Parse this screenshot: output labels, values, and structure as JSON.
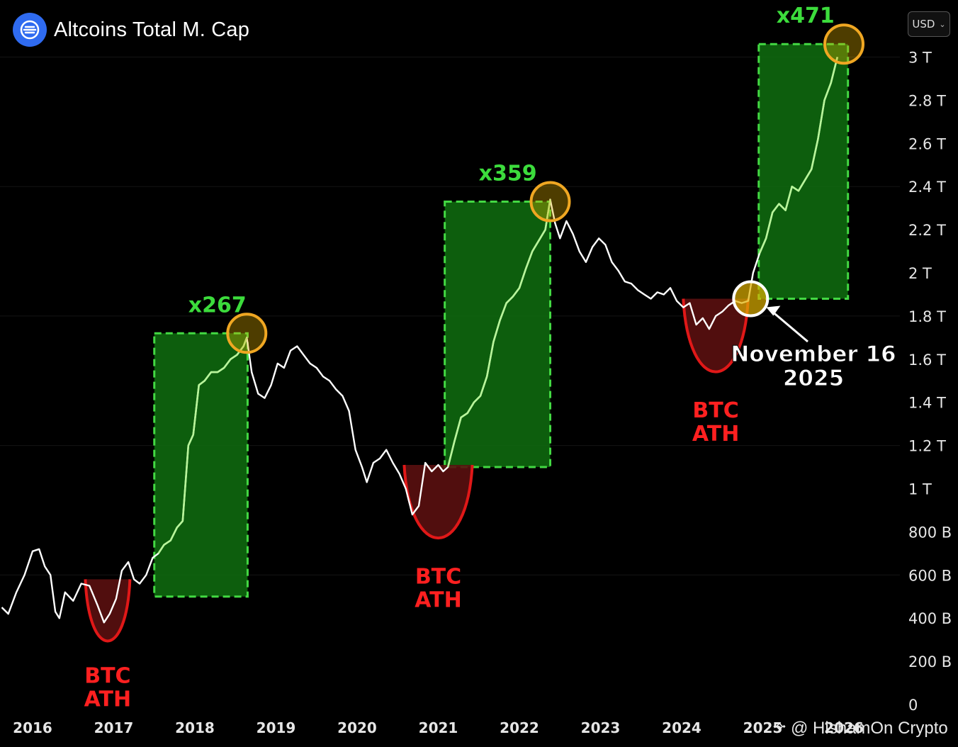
{
  "header": {
    "title": "Altcoins Total M. Cap",
    "currency": "USD",
    "currency_chevron_icon": "chevron-down-icon",
    "logo_icon": "altcoin-logo-icon"
  },
  "watermark": {
    "text": "@ HishamOn Crypto",
    "icon": "binance-icon"
  },
  "colors": {
    "price_line": "#ffffff",
    "rally_line": "#b8f59a",
    "rally_box_fill": "#0f6e0f",
    "rally_box_border": "#43d943",
    "multiplier_text": "#3cdc3c",
    "bottom_fill": "#5a0f0f",
    "bottom_stroke": "#e01818",
    "btc_ath_text": "#ff2020",
    "peak_circle": "#f0a722",
    "peak_fill": "#e0b000"
  },
  "chart_data": {
    "type": "line",
    "title": "Altcoins Total M. Cap",
    "ylim": [
      0,
      3100000000000
    ],
    "y_ticks": [
      {
        "value": 0,
        "label": "0"
      },
      {
        "value": 200000000000,
        "label": "200 B"
      },
      {
        "value": 400000000000,
        "label": "400 B"
      },
      {
        "value": 600000000000,
        "label": "600 B"
      },
      {
        "value": 800000000000,
        "label": "800 B"
      },
      {
        "value": 1000000000000,
        "label": "1 T"
      },
      {
        "value": 1200000000000,
        "label": "1.2 T"
      },
      {
        "value": 1400000000000,
        "label": "1.4 T"
      },
      {
        "value": 1600000000000,
        "label": "1.6 T"
      },
      {
        "value": 1800000000000,
        "label": "1.8 T"
      },
      {
        "value": 2000000000000,
        "label": "2 T"
      },
      {
        "value": 2200000000000,
        "label": "2.2 T"
      },
      {
        "value": 2400000000000,
        "label": "2.4 T"
      },
      {
        "value": 2600000000000,
        "label": "2.6 T"
      },
      {
        "value": 2800000000000,
        "label": "2.8 T"
      },
      {
        "value": 3000000000000,
        "label": "3 T"
      }
    ],
    "x_ticks": [
      "2016",
      "2017",
      "2018",
      "2019",
      "2020",
      "2021",
      "2022",
      "2023",
      "2024",
      "2025",
      "2026"
    ],
    "series": [
      {
        "points": [
          [
            2015.62,
            450
          ],
          [
            2015.7,
            420
          ],
          [
            2015.8,
            520
          ],
          [
            2015.9,
            600
          ],
          [
            2016.0,
            710
          ],
          [
            2016.08,
            720
          ],
          [
            2016.15,
            640
          ],
          [
            2016.22,
            600
          ],
          [
            2016.28,
            430
          ],
          [
            2016.33,
            400
          ],
          [
            2016.4,
            520
          ],
          [
            2016.5,
            480
          ],
          [
            2016.6,
            560
          ],
          [
            2016.7,
            550
          ],
          [
            2016.8,
            460
          ],
          [
            2016.88,
            380
          ],
          [
            2016.95,
            420
          ],
          [
            2017.03,
            490
          ],
          [
            2017.1,
            620
          ],
          [
            2017.18,
            660
          ],
          [
            2017.25,
            580
          ],
          [
            2017.32,
            560
          ],
          [
            2017.4,
            600
          ],
          [
            2017.48,
            680
          ],
          [
            2017.55,
            700
          ],
          [
            2017.62,
            740
          ],
          [
            2017.7,
            760
          ],
          [
            2017.78,
            820
          ],
          [
            2017.85,
            850
          ],
          [
            2017.92,
            1200
          ],
          [
            2017.98,
            1250
          ],
          [
            2018.05,
            1480
          ],
          [
            2018.12,
            1500
          ],
          [
            2018.2,
            1540
          ],
          [
            2018.28,
            1540
          ],
          [
            2018.36,
            1560
          ],
          [
            2018.44,
            1600
          ],
          [
            2018.52,
            1620
          ],
          [
            2018.6,
            1660
          ],
          [
            2018.64,
            1700
          ],
          [
            2018.7,
            1540
          ],
          [
            2018.78,
            1440
          ],
          [
            2018.86,
            1420
          ],
          [
            2018.94,
            1480
          ],
          [
            2019.02,
            1580
          ],
          [
            2019.1,
            1560
          ],
          [
            2019.18,
            1640
          ],
          [
            2019.26,
            1660
          ],
          [
            2019.34,
            1620
          ],
          [
            2019.42,
            1580
          ],
          [
            2019.5,
            1560
          ],
          [
            2019.58,
            1520
          ],
          [
            2019.66,
            1500
          ],
          [
            2019.74,
            1460
          ],
          [
            2019.82,
            1430
          ],
          [
            2019.9,
            1360
          ],
          [
            2019.98,
            1180
          ],
          [
            2020.06,
            1100
          ],
          [
            2020.12,
            1030
          ],
          [
            2020.2,
            1120
          ],
          [
            2020.28,
            1140
          ],
          [
            2020.36,
            1180
          ],
          [
            2020.44,
            1120
          ],
          [
            2020.52,
            1070
          ],
          [
            2020.6,
            1000
          ],
          [
            2020.68,
            880
          ],
          [
            2020.76,
            920
          ],
          [
            2020.84,
            1120
          ],
          [
            2020.92,
            1080
          ],
          [
            2021.0,
            1110
          ],
          [
            2021.06,
            1080
          ],
          [
            2021.12,
            1100
          ],
          [
            2021.2,
            1220
          ],
          [
            2021.28,
            1330
          ],
          [
            2021.36,
            1350
          ],
          [
            2021.44,
            1400
          ],
          [
            2021.52,
            1430
          ],
          [
            2021.6,
            1520
          ],
          [
            2021.68,
            1680
          ],
          [
            2021.76,
            1780
          ],
          [
            2021.84,
            1860
          ],
          [
            2021.92,
            1890
          ],
          [
            2022.0,
            1930
          ],
          [
            2022.08,
            2020
          ],
          [
            2022.16,
            2100
          ],
          [
            2022.24,
            2150
          ],
          [
            2022.32,
            2200
          ],
          [
            2022.38,
            2340
          ],
          [
            2022.44,
            2230
          ],
          [
            2022.5,
            2160
          ],
          [
            2022.58,
            2240
          ],
          [
            2022.66,
            2180
          ],
          [
            2022.74,
            2100
          ],
          [
            2022.82,
            2050
          ],
          [
            2022.9,
            2120
          ],
          [
            2022.98,
            2160
          ],
          [
            2023.06,
            2130
          ],
          [
            2023.14,
            2050
          ],
          [
            2023.22,
            2010
          ],
          [
            2023.3,
            1960
          ],
          [
            2023.38,
            1950
          ],
          [
            2023.46,
            1920
          ],
          [
            2023.54,
            1900
          ],
          [
            2023.62,
            1880
          ],
          [
            2023.7,
            1910
          ],
          [
            2023.78,
            1900
          ],
          [
            2023.86,
            1930
          ],
          [
            2023.94,
            1870
          ],
          [
            2024.02,
            1840
          ],
          [
            2024.1,
            1860
          ],
          [
            2024.18,
            1760
          ],
          [
            2024.26,
            1790
          ],
          [
            2024.34,
            1740
          ],
          [
            2024.42,
            1800
          ],
          [
            2024.5,
            1820
          ],
          [
            2024.58,
            1850
          ],
          [
            2024.66,
            1870
          ],
          [
            2024.74,
            1860
          ],
          [
            2024.82,
            1870
          ],
          [
            2024.88,
            2000
          ],
          [
            2024.96,
            2090
          ],
          [
            2025.04,
            2160
          ],
          [
            2025.12,
            2280
          ],
          [
            2025.2,
            2320
          ],
          [
            2025.28,
            2290
          ],
          [
            2025.36,
            2400
          ],
          [
            2025.44,
            2380
          ],
          [
            2025.52,
            2430
          ],
          [
            2025.6,
            2480
          ],
          [
            2025.68,
            2620
          ],
          [
            2025.76,
            2800
          ],
          [
            2025.84,
            2880
          ],
          [
            2025.92,
            3000
          ]
        ]
      }
    ],
    "rally_boxes": [
      {
        "x_start": 2017.5,
        "x_end": 2018.65,
        "y_low": 500,
        "y_high": 1720,
        "label": "x267"
      },
      {
        "x_start": 2021.08,
        "x_end": 2022.38,
        "y_low": 1100,
        "y_high": 2330,
        "label": "x359"
      },
      {
        "x_start": 2024.95,
        "x_end": 2026.05,
        "y_low": 1880,
        "y_high": 3060,
        "label": "x471"
      }
    ],
    "peak_markers": [
      {
        "x": 2018.64,
        "y": 1720
      },
      {
        "x": 2022.38,
        "y": 2330
      },
      {
        "x": 2026.0,
        "y": 3060
      }
    ],
    "btc_ath_bottoms": [
      {
        "x_start": 2016.65,
        "x_end": 2017.2,
        "y_top": 580,
        "y_bottom": 330,
        "label_lines": [
          "BTC",
          "ATH"
        ]
      },
      {
        "x_start": 2020.58,
        "x_end": 2021.42,
        "y_top": 1110,
        "y_bottom": 790,
        "label_lines": [
          "BTC",
          "ATH"
        ]
      },
      {
        "x_start": 2024.02,
        "x_end": 2024.82,
        "y_top": 1880,
        "y_bottom": 1560,
        "label_lines": [
          "BTC",
          "ATH"
        ]
      }
    ],
    "current_marker": {
      "x": 2024.85,
      "y": 1880
    },
    "annotation": {
      "lines": [
        "November 16",
        "2025"
      ],
      "arrow_to": {
        "x": 2024.85,
        "y": 1880
      }
    },
    "y_unit_note": "values in billions USD"
  }
}
